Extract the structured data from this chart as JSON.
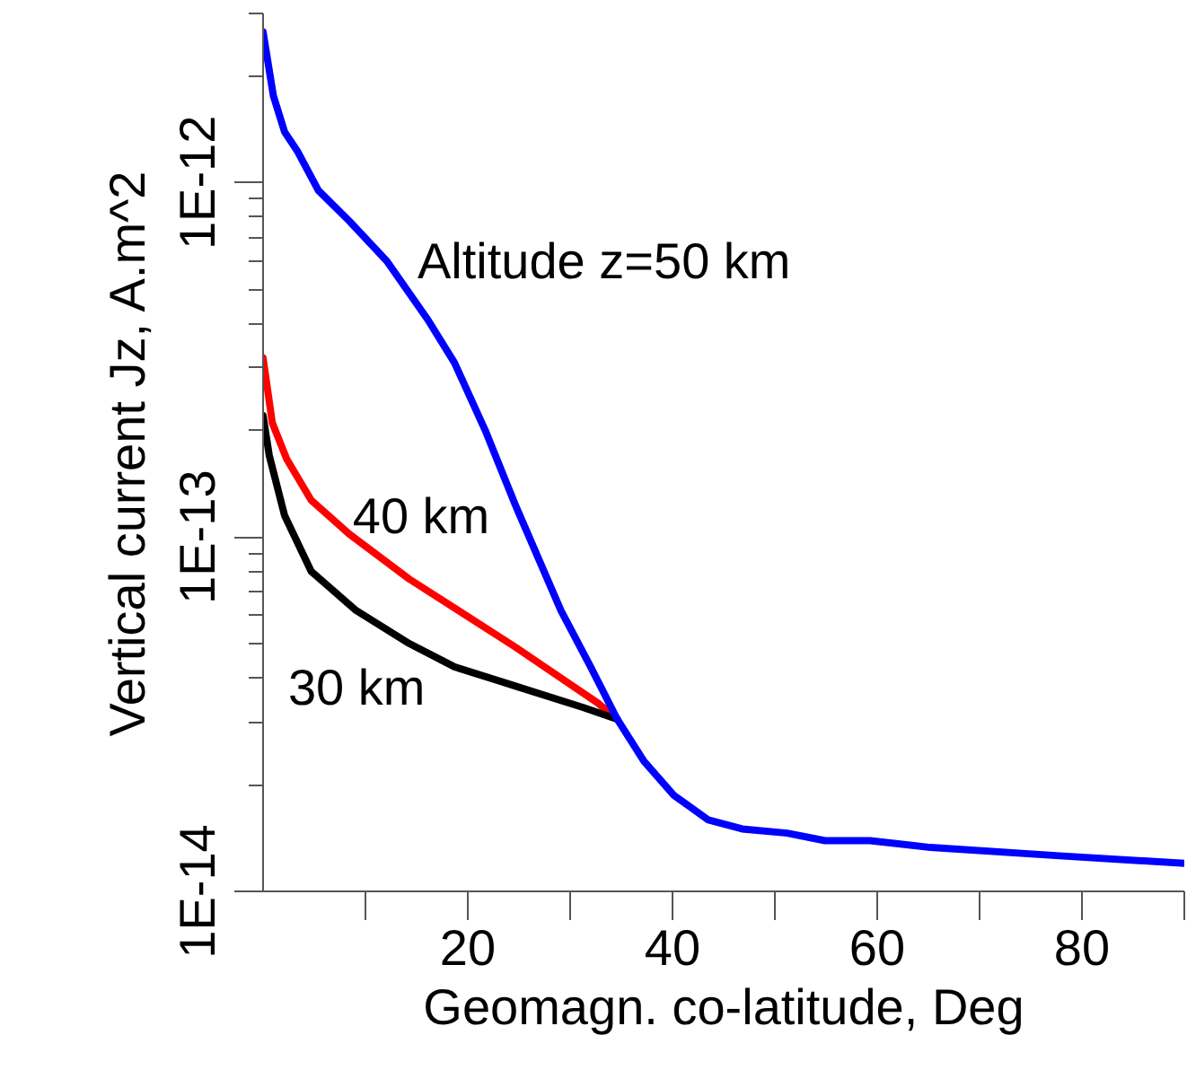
{
  "chart_data": {
    "type": "line",
    "xlabel": "Geomagn. co-latitude, Deg",
    "ylabel": "Vertical current Jz, A.m^2",
    "log": "y",
    "grid": false,
    "legend": false,
    "marker": "none",
    "line_style": "solid",
    "xlim": [
      0,
      90
    ],
    "ylim": [
      1e-14,
      3e-12
    ],
    "xticks": [
      {
        "value": 10,
        "label": null
      },
      20,
      {
        "value": 30,
        "label": null
      },
      40,
      {
        "value": 50,
        "label": null
      },
      60,
      {
        "value": 70,
        "label": null
      },
      80,
      {
        "value": 90,
        "label": null
      }
    ],
    "yticks": [
      {
        "value": 1e-14,
        "label": "1E-14"
      },
      {
        "value": 2e-14,
        "label": null
      },
      {
        "value": 3e-14,
        "label": null
      },
      {
        "value": 4e-14,
        "label": null
      },
      {
        "value": 5e-14,
        "label": null
      },
      {
        "value": 6e-14,
        "label": null
      },
      {
        "value": 7e-14,
        "label": null
      },
      {
        "value": 8e-14,
        "label": null
      },
      {
        "value": 9e-14,
        "label": null
      },
      {
        "value": 1e-13,
        "label": "1E-13"
      },
      {
        "value": 2e-13,
        "label": null
      },
      {
        "value": 3e-13,
        "label": null
      },
      {
        "value": 4e-13,
        "label": null
      },
      {
        "value": 5e-13,
        "label": null
      },
      {
        "value": 6e-13,
        "label": null
      },
      {
        "value": 7e-13,
        "label": null
      },
      {
        "value": 8e-13,
        "label": null
      },
      {
        "value": 9e-13,
        "label": null
      },
      {
        "value": 1e-12,
        "label": "1E-12"
      },
      {
        "value": 2e-12,
        "label": null
      },
      {
        "value": 3e-12,
        "label": null
      }
    ],
    "series": [
      {
        "name": "40 km",
        "color": "#ff0000",
        "x": [
          0,
          0.9,
          2.3,
          4.7,
          8.4,
          14.3,
          24.6,
          32.7,
          34.6
        ],
        "values": [
          3.2e-13,
          2.1e-13,
          1.66e-13,
          1.27e-13,
          1.02e-13,
          7.6e-14,
          4.9e-14,
          3.4e-14,
          3.06e-14
        ]
      },
      {
        "name": "30 km",
        "color": "#000000",
        "x": [
          0,
          0.6,
          2.1,
          4.7,
          9.1,
          14.3,
          18.7,
          24.6,
          31.3,
          34.6
        ],
        "values": [
          2.2e-13,
          1.7e-13,
          1.15e-13,
          8e-14,
          6.2e-14,
          5e-14,
          4.3e-14,
          3.8e-14,
          3.3e-14,
          3.06e-14
        ]
      },
      {
        "name": "Altitude z=50 km",
        "color": "#0000ff",
        "x": [
          0,
          1.0,
          2.1,
          3.4,
          5.4,
          8.4,
          12.1,
          16.1,
          18.7,
          21.7,
          24.6,
          29.1,
          32.0,
          34.6,
          37.2,
          40.1,
          43.5,
          46.8,
          51.2,
          54.9,
          59.3,
          65.2,
          77.8,
          90
        ],
        "values": [
          2.66e-12,
          1.76e-12,
          1.39e-12,
          1.22e-12,
          9.5e-13,
          7.8e-13,
          6e-13,
          4.1e-13,
          3.1e-13,
          2e-13,
          1.24e-13,
          6.2e-14,
          4.3e-14,
          3.06e-14,
          2.33e-14,
          1.87e-14,
          1.59e-14,
          1.5e-14,
          1.46e-14,
          1.39e-14,
          1.39e-14,
          1.33e-14,
          1.26e-14,
          1.2e-14
        ]
      }
    ]
  }
}
